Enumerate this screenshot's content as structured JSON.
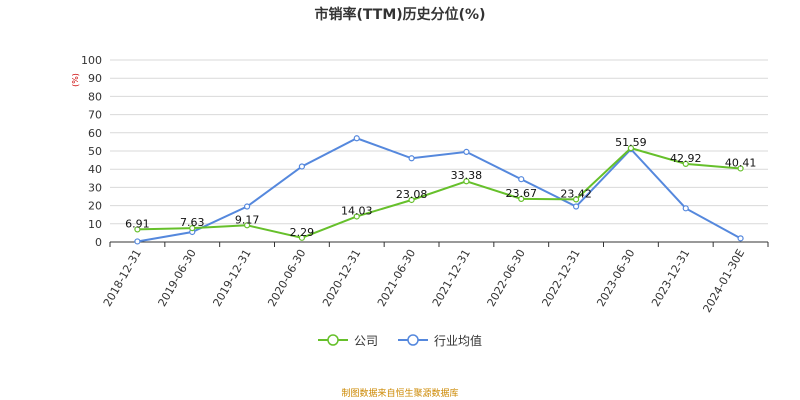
{
  "chart_data": {
    "type": "line",
    "title": "市销率(TTM)历史分位(%)",
    "unit_label": "(%)",
    "categories": [
      "2018-12-31",
      "2019-06-30",
      "2019-12-31",
      "2020-06-30",
      "2020-12-31",
      "2021-06-30",
      "2021-12-31",
      "2022-06-30",
      "2022-12-31",
      "2023-06-30",
      "2023-12-31",
      "2024-01-30E"
    ],
    "ylim": [
      0,
      100
    ],
    "yticks": [
      0,
      10,
      20,
      30,
      40,
      50,
      60,
      70,
      80,
      90,
      100
    ],
    "grid": true,
    "legend_position": "bottom",
    "series": [
      {
        "name": "公司",
        "color": "#66c02b",
        "values": [
          6.91,
          7.63,
          9.17,
          2.29,
          14.03,
          23.08,
          33.38,
          23.67,
          23.42,
          51.59,
          42.92,
          40.41
        ],
        "labels": [
          "6.91",
          "7.63",
          "9.17",
          "2.29",
          "14.03",
          "23.08",
          "33.38",
          "23.67",
          "23.42",
          "51.59",
          "42.92",
          "40.41"
        ]
      },
      {
        "name": "行业均值",
        "color": "#5588dd",
        "values": [
          0.3,
          5.5,
          19.5,
          41.5,
          57,
          46,
          49.5,
          34.5,
          19.5,
          51,
          18.5,
          2
        ]
      }
    ]
  },
  "footer": {
    "source": "制图数据来自恒生聚源数据库"
  }
}
